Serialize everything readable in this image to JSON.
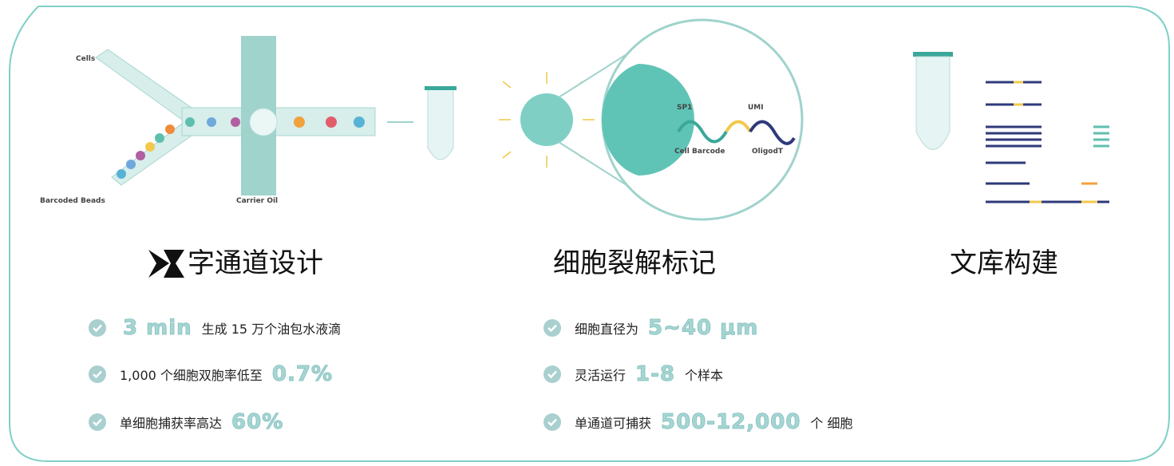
{
  "sections": [
    {
      "title": "字通道设计",
      "diagram_labels": [
        "Cells",
        "Barcoded Beads",
        "Carrier Oil"
      ],
      "bullets": [
        [
          {
            "text": "3 min",
            "highlight": true
          },
          {
            "text": "生成 15 万个油包水液滴"
          }
        ],
        [
          {
            "text": "1,000 个细胞双胞率低至"
          },
          {
            "text": "0.7%",
            "highlight": true
          }
        ],
        [
          {
            "text": "单细胞捕获率高达"
          },
          {
            "text": "60%",
            "highlight": true
          }
        ]
      ]
    },
    {
      "title": "细胞裂解标记",
      "diagram_labels": [
        "SP1",
        "UMI",
        "Cell Barcode",
        "OligodT"
      ],
      "bullets": [
        [
          {
            "text": "细胞直径为"
          },
          {
            "text": "5~40 μm",
            "highlight": true
          }
        ],
        [
          {
            "text": "灵活运行"
          },
          {
            "text": "1-8",
            "highlight": true
          },
          {
            "text": "个样本"
          }
        ],
        [
          {
            "text": "单通道可捕获"
          },
          {
            "text": "500-12,000",
            "highlight": true
          },
          {
            "text": "个 细胞"
          }
        ]
      ]
    },
    {
      "title": "文库构建"
    }
  ]
}
